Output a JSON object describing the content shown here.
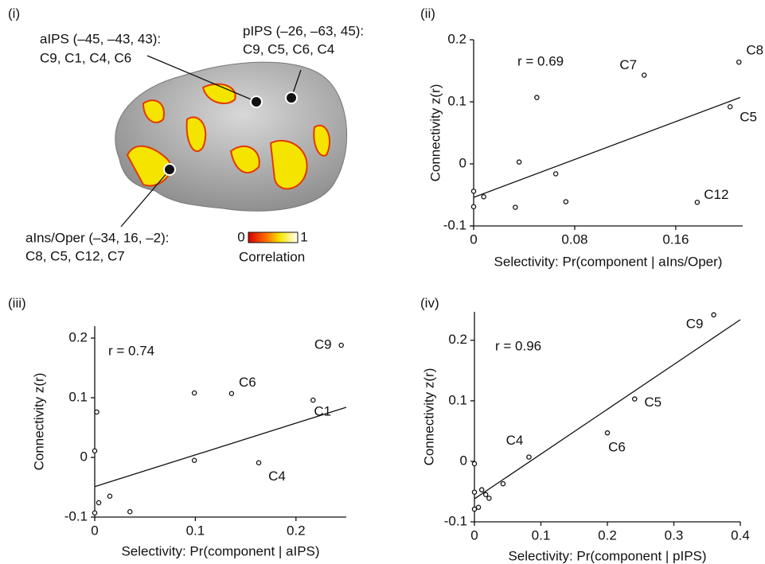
{
  "brain_panel": {
    "panel": "(i)",
    "labels": [
      {
        "region": "aIPS (–45, –43, 43):",
        "components": "C9, C1, C4, C6"
      },
      {
        "region": "pIPS (–26, –63, 45):",
        "components": "C9, C5, C6, C4"
      },
      {
        "region": "aIns/Oper (–34, 16, –2):",
        "components": "C8, C5, C12, C7"
      }
    ],
    "colorbar": {
      "ticks": [
        0,
        1
      ],
      "label": "Correlation"
    }
  },
  "chart_data": [
    {
      "type": "scatter",
      "panel": "(ii)",
      "annotation": "r = 0.69",
      "x_label": "Selectivity: Pr(component | aIns/Oper)",
      "y_label": "Connectivity z(r)",
      "x": [
        0,
        0,
        0.008,
        0.033,
        0.036,
        0.05,
        0.065,
        0.073,
        0.135,
        0.177,
        0.203,
        0.21
      ],
      "values": [
        -0.044,
        -0.069,
        -0.053,
        -0.07,
        0.003,
        0.107,
        -0.016,
        -0.061,
        0.143,
        -0.062,
        0.092,
        0.164
      ],
      "point_labels": [
        {
          "index": 11,
          "text": "C8"
        },
        {
          "index": 8,
          "text": "C7"
        },
        {
          "index": 10,
          "text": "C5"
        },
        {
          "index": 9,
          "text": "C12"
        }
      ],
      "fit_line": {
        "x": [
          0,
          0.211
        ],
        "values": [
          -0.054,
          0.107
        ]
      },
      "xlim": [
        0,
        0.213
      ],
      "ylim": [
        -0.1,
        0.2
      ],
      "xticks": [
        0,
        0.08,
        0.16
      ],
      "yticks": [
        -0.1,
        0,
        0.1,
        0.2
      ]
    },
    {
      "type": "scatter",
      "panel": "(iii)",
      "annotation": "r = 0.74",
      "x_label": "Selectivity: Pr(component | aIPS)",
      "y_label": "Connectivity z(r)",
      "x": [
        0,
        0,
        0.004,
        0.015,
        0.002,
        0.035,
        0.099,
        0.099,
        0.136,
        0.163,
        0.217,
        0.245
      ],
      "values": [
        0.011,
        -0.093,
        -0.076,
        -0.065,
        0.076,
        -0.091,
        0.108,
        -0.005,
        0.107,
        -0.009,
        0.096,
        0.188
      ],
      "point_labels": [
        {
          "index": 11,
          "text": "C9"
        },
        {
          "index": 8,
          "text": "C6"
        },
        {
          "index": 10,
          "text": "C1"
        },
        {
          "index": 9,
          "text": "C4"
        }
      ],
      "fit_line": {
        "x": [
          0,
          0.25
        ],
        "values": [
          -0.049,
          0.084
        ]
      },
      "xlim": [
        0,
        0.25
      ],
      "ylim": [
        -0.1,
        0.22
      ],
      "xticks": [
        0,
        0.1,
        0.2
      ],
      "yticks": [
        -0.1,
        0,
        0.1,
        0.2
      ]
    },
    {
      "type": "scatter",
      "panel": "(iv)",
      "annotation": "r = 0.96",
      "x_label": "Selectivity: Pr(component | pIPS)",
      "y_label": "Connectivity z(r)",
      "x": [
        0,
        0,
        0,
        0.006,
        0.011,
        0.017,
        0.022,
        0.043,
        0.082,
        0.2,
        0.241,
        0.36
      ],
      "values": [
        -0.004,
        -0.051,
        -0.079,
        -0.076,
        -0.047,
        -0.055,
        -0.061,
        -0.037,
        0.007,
        0.047,
        0.103,
        0.242
      ],
      "point_labels": [
        {
          "index": 11,
          "text": "C9"
        },
        {
          "index": 9,
          "text": "C6"
        },
        {
          "index": 10,
          "text": "C5"
        },
        {
          "index": 8,
          "text": "C4"
        }
      ],
      "fit_line": {
        "x": [
          0,
          0.4
        ],
        "values": [
          -0.062,
          0.234
        ]
      },
      "xlim": [
        0,
        0.4
      ],
      "ylim": [
        -0.1,
        0.247
      ],
      "xticks": [
        0,
        0.1,
        0.2,
        0.3,
        0.4
      ],
      "yticks": [
        -0.1,
        0,
        0.1,
        0.2
      ]
    }
  ]
}
